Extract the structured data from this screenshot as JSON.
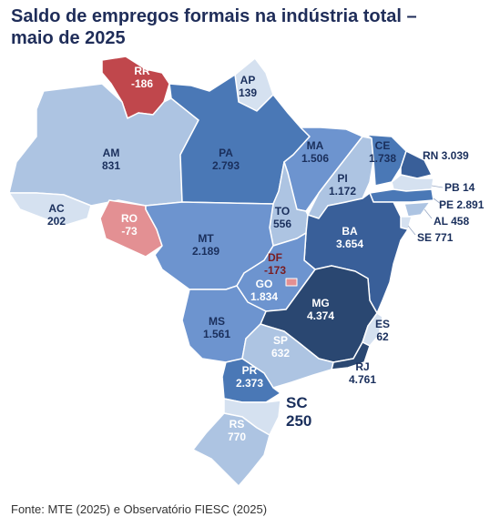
{
  "title_line1": "Saldo de empregos formais na indústria total –",
  "title_line2": "maio de 2025",
  "source": "Fonte: MTE (2025) e Observatório FIESC (2025)",
  "colors": {
    "title": "#1f2d59",
    "negative_strong": "#c0474c",
    "negative_light": "#e39093",
    "light": "#adc4e2",
    "lightest": "#d5e1f0",
    "medium": "#6d94cf",
    "medium_dark": "#4a78b6",
    "dark": "#395f99",
    "darkest": "#2a4771",
    "label_dark": "#1a2f5c",
    "label_negative": "#7a1c20"
  },
  "states": [
    {
      "uf": "RR",
      "value": "-186"
    },
    {
      "uf": "AP",
      "value": "139"
    },
    {
      "uf": "AM",
      "value": "831"
    },
    {
      "uf": "PA",
      "value": "2.793"
    },
    {
      "uf": "MA",
      "value": "1.506"
    },
    {
      "uf": "CE",
      "value": "1.738"
    },
    {
      "uf": "RN",
      "value": "3.039"
    },
    {
      "uf": "PB",
      "value": "14"
    },
    {
      "uf": "PE",
      "value": "2.891"
    },
    {
      "uf": "AL",
      "value": "458"
    },
    {
      "uf": "SE",
      "value": "771"
    },
    {
      "uf": "PI",
      "value": "1.172"
    },
    {
      "uf": "AC",
      "value": "202"
    },
    {
      "uf": "RO",
      "value": "-73"
    },
    {
      "uf": "TO",
      "value": "556"
    },
    {
      "uf": "MT",
      "value": "2.189"
    },
    {
      "uf": "BA",
      "value": "3.654"
    },
    {
      "uf": "DF",
      "value": "-173"
    },
    {
      "uf": "GO",
      "value": "1.834"
    },
    {
      "uf": "MG",
      "value": "4.374"
    },
    {
      "uf": "MS",
      "value": "1.561"
    },
    {
      "uf": "ES",
      "value": "62"
    },
    {
      "uf": "SP",
      "value": "632"
    },
    {
      "uf": "RJ",
      "value": "4.761"
    },
    {
      "uf": "PR",
      "value": "2.373"
    },
    {
      "uf": "SC",
      "value": "250"
    },
    {
      "uf": "RS",
      "value": "770"
    }
  ]
}
